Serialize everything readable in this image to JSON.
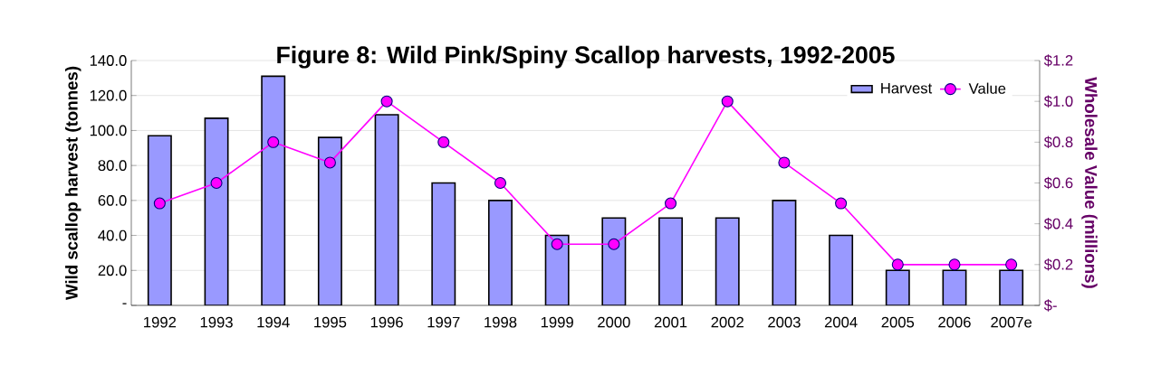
{
  "chart_data": {
    "type": "bar",
    "title": "Figure 8: Wild Pink/Spiny Scallop harvests, 1992-2005",
    "ylabel": "Wild scallop harvest (tonnes)",
    "y2label": "Wholesale Value (millions)",
    "categories": [
      "1992",
      "1993",
      "1994",
      "1995",
      "1996",
      "1997",
      "1998",
      "1999",
      "2000",
      "2001",
      "2002",
      "2003",
      "2004",
      "2005",
      "2006",
      "2007e"
    ],
    "series": [
      {
        "name": "Harvest",
        "color": "#9999ff",
        "values": [
          97,
          107,
          131,
          96,
          109,
          70,
          60,
          40,
          50,
          50,
          50,
          60,
          40,
          20,
          20,
          20
        ]
      },
      {
        "name": "Value",
        "type": "line",
        "axis": "y2",
        "color": "#ff00ff",
        "marker": "circle",
        "values": [
          0.5,
          0.6,
          0.8,
          0.7,
          1.0,
          0.8,
          0.6,
          0.3,
          0.3,
          0.5,
          1.0,
          0.7,
          0.5,
          0.2,
          0.2,
          0.2
        ]
      }
    ],
    "ylim": [
      0,
      140
    ],
    "yticks": [
      {
        "value": 0,
        "label": "-"
      },
      {
        "value": 20,
        "label": "20.0"
      },
      {
        "value": 40,
        "label": "40.0"
      },
      {
        "value": 60,
        "label": "60.0"
      },
      {
        "value": 80,
        "label": "80.0"
      },
      {
        "value": 100,
        "label": "100.0"
      },
      {
        "value": 120,
        "label": "120.0"
      },
      {
        "value": 140,
        "label": "140.0"
      }
    ],
    "y2lim": [
      0,
      1.2
    ],
    "y2ticks": [
      {
        "value": 0,
        "label": "$-"
      },
      {
        "value": 0.2,
        "label": "$0.2"
      },
      {
        "value": 0.4,
        "label": "$0.4"
      },
      {
        "value": 0.6,
        "label": "$0.6"
      },
      {
        "value": 0.8,
        "label": "$0.8"
      },
      {
        "value": 1.0,
        "label": "$1.0"
      },
      {
        "value": 1.2,
        "label": "$1.2"
      }
    ],
    "grid": "y",
    "legend": "top right"
  }
}
